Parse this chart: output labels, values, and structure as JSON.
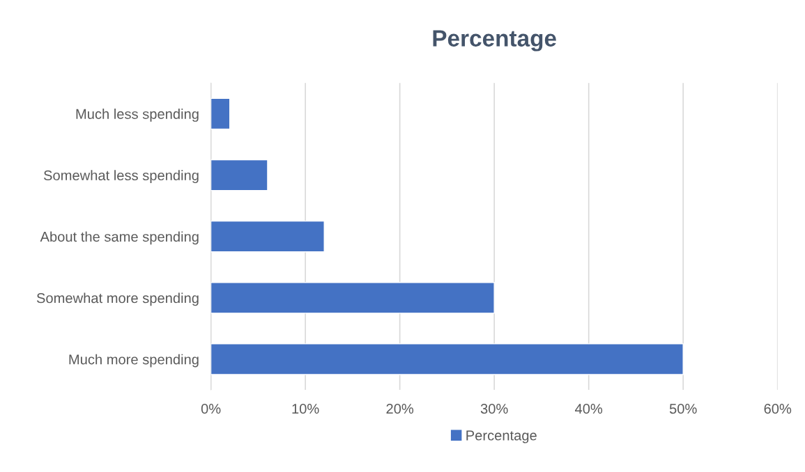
{
  "chart_data": {
    "type": "bar",
    "title": "Percentage",
    "orientation": "horizontal",
    "categories": [
      "Much less spending",
      "Somewhat less spending",
      "About the same spending",
      "Somewhat more spending",
      "Much more spending"
    ],
    "series": [
      {
        "name": "Percentage",
        "color": "#4472c4",
        "values": [
          2,
          6,
          12,
          30,
          50
        ]
      }
    ],
    "xlim": [
      0,
      60
    ],
    "xticks": [
      {
        "value": 0,
        "label": "0%"
      },
      {
        "value": 10,
        "label": "10%"
      },
      {
        "value": 20,
        "label": "20%"
      },
      {
        "value": 30,
        "label": "30%"
      },
      {
        "value": 40,
        "label": "40%"
      },
      {
        "value": 50,
        "label": "50%"
      },
      {
        "value": 60,
        "label": "60%"
      }
    ],
    "grid": "x",
    "legend": "bottom"
  }
}
